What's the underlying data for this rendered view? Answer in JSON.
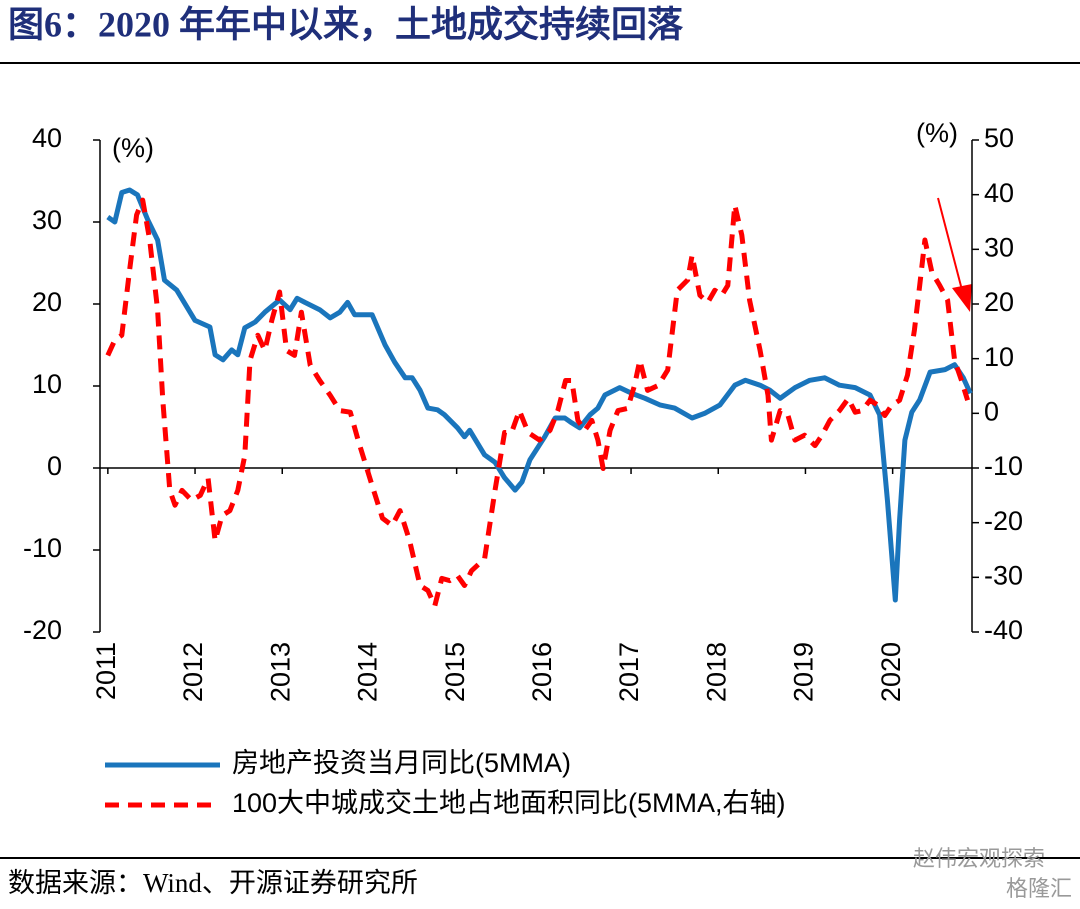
{
  "chart_data": {
    "type": "line",
    "title": "图6：2020 年年中以来，土地成交持续回落",
    "y_label": "(%)",
    "y2_label": "(%)",
    "source": "数据来源：Wind、开源证券研究所",
    "watermark": [
      "赵伟宏观探索",
      "格隆汇"
    ],
    "xlim": [
      2010.91,
      2020.91
    ],
    "xticks": [
      2011,
      2012,
      2013,
      2014,
      2015,
      2016,
      2017,
      2018,
      2019,
      2020
    ],
    "ylim": [
      -20,
      40
    ],
    "yticks": [
      -20,
      -10,
      0,
      10,
      20,
      30,
      40
    ],
    "y2lim": [
      -40,
      50
    ],
    "y2ticks": [
      -40,
      -30,
      -20,
      -10,
      0,
      10,
      20,
      30,
      40,
      50
    ],
    "series": [
      {
        "name": "房地产投资当月同比(5MMA)",
        "color": "#1a75bc",
        "axis": "y",
        "dash": false,
        "x": [
          2011.0,
          2011.08,
          2011.16,
          2011.25,
          2011.34,
          2011.46,
          2011.57,
          2011.65,
          2011.79,
          2012.0,
          2012.17,
          2012.23,
          2012.32,
          2012.42,
          2012.49,
          2012.57,
          2012.69,
          2012.8,
          2012.97,
          2013.09,
          2013.17,
          2013.26,
          2013.43,
          2013.55,
          2013.66,
          2013.75,
          2013.83,
          2014.03,
          2014.18,
          2014.29,
          2014.41,
          2014.49,
          2014.58,
          2014.67,
          2014.78,
          2014.86,
          2015.01,
          2015.09,
          2015.15,
          2015.32,
          2015.44,
          2015.55,
          2015.67,
          2015.75,
          2015.84,
          2016.01,
          2016.13,
          2016.24,
          2016.32,
          2016.41,
          2016.53,
          2016.62,
          2016.7,
          2016.87,
          2017.01,
          2017.16,
          2017.33,
          2017.5,
          2017.7,
          2017.85,
          2018.02,
          2018.19,
          2018.31,
          2018.48,
          2018.59,
          2018.71,
          2018.88,
          2019.05,
          2019.22,
          2019.39,
          2019.57,
          2019.74,
          2019.85,
          2019.94,
          2020.03,
          2020.08,
          2020.14,
          2020.22,
          2020.31,
          2020.43,
          2020.6,
          2020.71,
          2020.81,
          2020.89
        ],
        "values": [
          30.6,
          30,
          33.6,
          33.9,
          33.3,
          30.2,
          27.8,
          22.9,
          21.7,
          18,
          17.2,
          13.8,
          13.2,
          14.4,
          13.8,
          17.1,
          17.8,
          19,
          20.5,
          19.3,
          20.7,
          20.2,
          19.3,
          18.3,
          19,
          20.2,
          18.7,
          18.7,
          15,
          12.9,
          11,
          11,
          9.5,
          7.3,
          7.1,
          6.5,
          4.9,
          3.8,
          4.6,
          1.6,
          0.7,
          -1.2,
          -2.7,
          -1.7,
          1,
          3.8,
          6.1,
          6.1,
          5.5,
          4.9,
          6.5,
          7.3,
          8.9,
          9.8,
          9.1,
          8.5,
          7.7,
          7.3,
          6.1,
          6.7,
          7.7,
          10.1,
          10.7,
          10.1,
          9.5,
          8.5,
          9.8,
          10.7,
          11,
          10.1,
          9.8,
          8.9,
          6.5,
          -3.9,
          -16.1,
          -6.3,
          3.4,
          6.8,
          8.3,
          11.7,
          12,
          12.6,
          11,
          9.1
        ]
      },
      {
        "name": "100大中城成交土地占地面积同比(5MMA,右轴)",
        "color": "#ff0000",
        "axis": "y2",
        "dash": true,
        "x": [
          2011.0,
          2011.08,
          2011.16,
          2011.25,
          2011.33,
          2011.4,
          2011.48,
          2011.57,
          2011.63,
          2011.71,
          2011.77,
          2011.85,
          2011.96,
          2012.06,
          2012.15,
          2012.23,
          2012.31,
          2012.4,
          2012.49,
          2012.57,
          2012.63,
          2012.72,
          2012.8,
          2012.88,
          2012.97,
          2013.05,
          2013.14,
          2013.22,
          2013.32,
          2013.43,
          2013.55,
          2013.66,
          2013.78,
          2013.87,
          2014.03,
          2014.15,
          2014.26,
          2014.35,
          2014.46,
          2014.58,
          2014.67,
          2014.75,
          2014.83,
          2014.92,
          2015.01,
          2015.09,
          2015.17,
          2015.32,
          2015.44,
          2015.55,
          2015.63,
          2015.72,
          2015.82,
          2015.95,
          2016.07,
          2016.16,
          2016.25,
          2016.32,
          2016.39,
          2016.47,
          2016.55,
          2016.62,
          2016.68,
          2016.76,
          2016.85,
          2016.96,
          2017.04,
          2017.1,
          2017.19,
          2017.31,
          2017.42,
          2017.53,
          2017.65,
          2017.7,
          2017.79,
          2017.88,
          2017.96,
          2018.04,
          2018.11,
          2018.19,
          2018.27,
          2018.36,
          2018.48,
          2018.57,
          2018.61,
          2018.71,
          2018.8,
          2018.88,
          2018.99,
          2019.11,
          2019.19,
          2019.28,
          2019.39,
          2019.49,
          2019.57,
          2019.65,
          2019.74,
          2019.83,
          2019.91,
          2019.99,
          2020.08,
          2020.17,
          2020.25,
          2020.31,
          2020.37,
          2020.45,
          2020.54,
          2020.63,
          2020.71,
          2020.79,
          2020.86
        ],
        "values": [
          10.6,
          13.4,
          14.3,
          26.2,
          36.3,
          39,
          31.7,
          18.9,
          2.4,
          -14.1,
          -16.8,
          -14.1,
          -15.9,
          -15,
          -11.9,
          -23.3,
          -18.7,
          -17.8,
          -14.1,
          -7.7,
          9.7,
          14.3,
          11.5,
          17,
          22.2,
          11.5,
          10.6,
          18.5,
          8.8,
          6,
          3.3,
          0.5,
          0.2,
          -4.9,
          -13.2,
          -19.2,
          -20.5,
          -17.8,
          -23.3,
          -31.5,
          -32.4,
          -35.2,
          -30.2,
          -30.6,
          -29.7,
          -31.5,
          -28.8,
          -26.6,
          -14.1,
          -3.5,
          -3.5,
          0.5,
          -3.5,
          -4.9,
          -3.1,
          0.5,
          6,
          6,
          -1.3,
          -3.1,
          -1.3,
          -4.9,
          -10.1,
          -3.1,
          0.5,
          0.9,
          5.1,
          9.7,
          4.2,
          5.1,
          7.9,
          22.5,
          24.4,
          28.9,
          21.6,
          20.3,
          22.5,
          21.6,
          23.4,
          38.1,
          32.6,
          20.7,
          11.5,
          3.3,
          -4.9,
          0.5,
          -0.4,
          -4.9,
          -4,
          -5.9,
          -4,
          -1.3,
          0.5,
          2.7,
          0.2,
          0.5,
          2.4,
          1.5,
          -0.4,
          1.5,
          2.4,
          7,
          15.2,
          23.4,
          31.7,
          25.8,
          23.4,
          20.7,
          9.7,
          6,
          2.4
        ]
      }
    ]
  }
}
